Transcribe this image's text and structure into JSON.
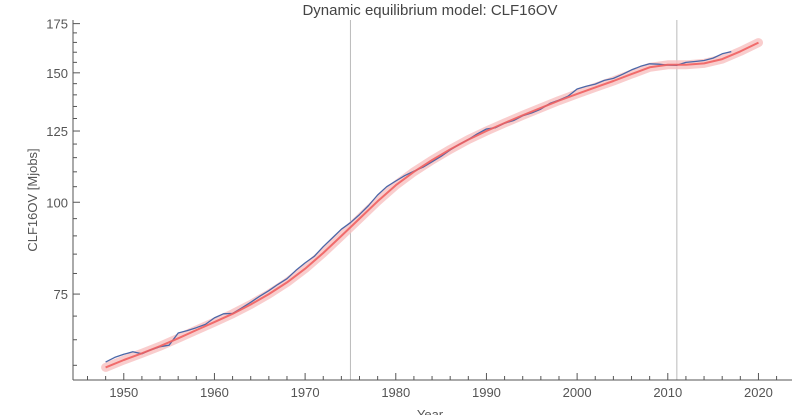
{
  "chart_data": {
    "type": "line",
    "title": "Dynamic equilibrium model: CLF16OV",
    "xlabel": "Year",
    "ylabel": "CLF16OV [Mjobs]",
    "xlim": [
      1944.4,
      2023.7
    ],
    "ylim": [
      57.3,
      177
    ],
    "yscale": "log",
    "grid": false,
    "x_ticks": [
      1950,
      1960,
      1970,
      1980,
      1990,
      2000,
      2010,
      2020
    ],
    "y_ticks": [
      75,
      100,
      125,
      150,
      175
    ],
    "vertical_lines": [
      1975,
      2011
    ],
    "colors": {
      "data": "#4a67a8",
      "model": "#f06060",
      "band": "#f8c0c0",
      "vline": "#bbbbbb",
      "axis": "#555555"
    },
    "series": [
      {
        "role": "data",
        "x": [
          1948,
          1949,
          1950,
          1951,
          1952,
          1953,
          1954,
          1955,
          1956,
          1957,
          1958,
          1959,
          1960,
          1961,
          1962,
          1963,
          1964,
          1965,
          1966,
          1967,
          1968,
          1969,
          1970,
          1971,
          1972,
          1973,
          1974,
          1975,
          1976,
          1977,
          1978,
          1979,
          1980,
          1981,
          1982,
          1983,
          1984,
          1985,
          1986,
          1987,
          1988,
          1989,
          1990,
          1991,
          1992,
          1993,
          1994,
          1995,
          1996,
          1997,
          1998,
          1999,
          2000,
          2001,
          2002,
          2003,
          2004,
          2005,
          2006,
          2007,
          2008,
          2009,
          2010,
          2011,
          2012,
          2013,
          2014,
          2015,
          2016,
          2017
        ],
        "y": [
          60.6,
          61.5,
          62.1,
          62.6,
          62.2,
          63.0,
          63.6,
          63.9,
          66.4,
          66.9,
          67.5,
          68.2,
          69.6,
          70.5,
          70.6,
          71.8,
          73.1,
          74.5,
          75.8,
          77.3,
          78.7,
          80.8,
          82.7,
          84.4,
          87.0,
          89.4,
          91.9,
          93.8,
          96.2,
          99.0,
          102.3,
          105.0,
          106.9,
          108.7,
          110.2,
          111.6,
          113.5,
          115.5,
          117.8,
          119.9,
          121.7,
          123.9,
          125.8,
          126.3,
          128.1,
          129.2,
          131.1,
          132.3,
          133.9,
          136.3,
          137.7,
          139.4,
          142.6,
          143.8,
          144.8,
          146.5,
          147.4,
          149.3,
          151.4,
          153.1,
          154.3,
          154.1,
          153.7,
          153.6,
          155.0,
          155.4,
          155.9,
          157.1,
          159.2,
          160.3
        ]
      },
      {
        "role": "model",
        "x": [
          1948,
          1950,
          1952,
          1954,
          1956,
          1958,
          1960,
          1962,
          1964,
          1966,
          1968,
          1970,
          1972,
          1974,
          1976,
          1978,
          1980,
          1982,
          1984,
          1986,
          1988,
          1990,
          1992,
          1994,
          1996,
          1998,
          2000,
          2002,
          2004,
          2006,
          2008,
          2010,
          2012,
          2014,
          2016,
          2018,
          2020
        ],
        "y": [
          59.6,
          61.0,
          62.3,
          63.7,
          65.3,
          67.0,
          68.7,
          70.5,
          72.6,
          75.0,
          77.8,
          81.2,
          85.3,
          90.0,
          95.0,
          100.3,
          105.5,
          110.0,
          114.1,
          118.0,
          121.7,
          125.0,
          128.2,
          131.3,
          134.4,
          137.5,
          140.4,
          143.3,
          146.2,
          149.4,
          152.6,
          153.8,
          153.8,
          154.5,
          156.6,
          160.4,
          164.9
        ]
      }
    ]
  }
}
